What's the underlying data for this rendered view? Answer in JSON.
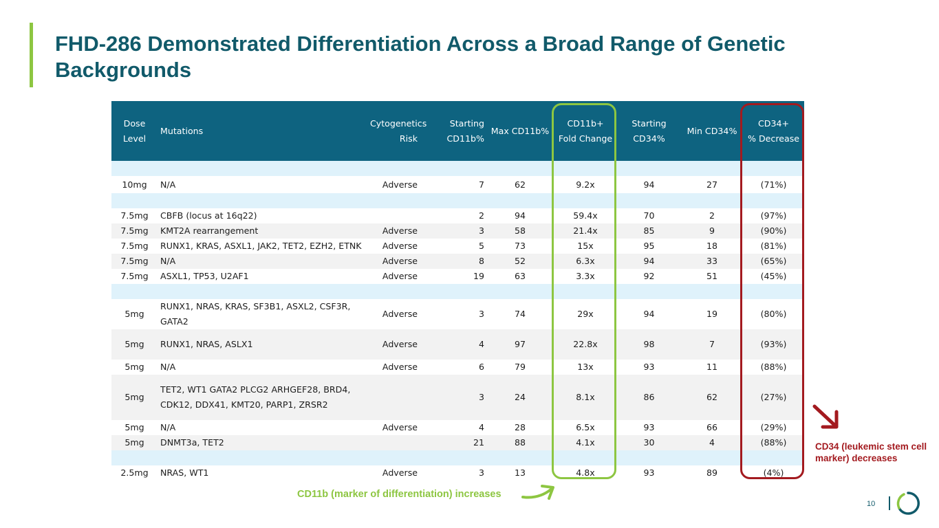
{
  "title": "FHD-286 Demonstrated Differentiation Across a Broad Range of Genetic Backgrounds",
  "table": {
    "headers": {
      "dose_line1": "Dose",
      "dose_line2": "Level",
      "mutations": "Mutations",
      "cyto_line1": "Cytogenetics",
      "cyto_line2": "Risk",
      "start_cd11b_line1": "Starting",
      "start_cd11b_line2": "CD11b%",
      "max_cd11b": "Max CD11b%",
      "fold_line1": "CD11b+",
      "fold_line2": "Fold Change",
      "start_cd34_line1": "Starting",
      "start_cd34_line2": "CD34%",
      "min_cd34": "Min CD34%",
      "decrease_line1": "CD34+",
      "decrease_line2": "% Decrease"
    },
    "rows": [
      {
        "dose": "10mg",
        "mutations": "N/A",
        "risk": "Adverse",
        "start_cd11b": "7",
        "max_cd11b": "62",
        "fold": "9.2x",
        "start_cd34": "94",
        "min_cd34": "27",
        "decrease": "(71%)"
      },
      {
        "dose": "7.5mg",
        "mutations": "CBFB (locus at 16q22)",
        "risk": "",
        "start_cd11b": "2",
        "max_cd11b": "94",
        "fold": "59.4x",
        "start_cd34": "70",
        "min_cd34": "2",
        "decrease": "(97%)"
      },
      {
        "dose": "7.5mg",
        "mutations": "KMT2A rearrangement",
        "risk": "Adverse",
        "start_cd11b": "3",
        "max_cd11b": "58",
        "fold": "21.4x",
        "start_cd34": "85",
        "min_cd34": "9",
        "decrease": "(90%)"
      },
      {
        "dose": "7.5mg",
        "mutations": "RUNX1, KRAS, ASXL1, JAK2, TET2, EZH2, ETNK",
        "risk": "Adverse",
        "start_cd11b": "5",
        "max_cd11b": "73",
        "fold": "15x",
        "start_cd34": "95",
        "min_cd34": "18",
        "decrease": "(81%)"
      },
      {
        "dose": "7.5mg",
        "mutations": "N/A",
        "risk": "Adverse",
        "start_cd11b": "8",
        "max_cd11b": "52",
        "fold": "6.3x",
        "start_cd34": "94",
        "min_cd34": "33",
        "decrease": "(65%)"
      },
      {
        "dose": "7.5mg",
        "mutations": "ASXL1, TP53, U2AF1",
        "risk": "Adverse",
        "start_cd11b": "19",
        "max_cd11b": "63",
        "fold": "3.3x",
        "start_cd34": "92",
        "min_cd34": "51",
        "decrease": "(45%)"
      },
      {
        "dose": "5mg",
        "mutations": "RUNX1, NRAS, KRAS, SF3B1, ASXL2, CSF3R, GATA2",
        "risk": "Adverse",
        "start_cd11b": "3",
        "max_cd11b": "74",
        "fold": "29x",
        "start_cd34": "94",
        "min_cd34": "19",
        "decrease": "(80%)"
      },
      {
        "dose": "5mg",
        "mutations": "RUNX1, NRAS, ASLX1",
        "risk": "Adverse",
        "start_cd11b": "4",
        "max_cd11b": "97",
        "fold": "22.8x",
        "start_cd34": "98",
        "min_cd34": "7",
        "decrease": "(93%)"
      },
      {
        "dose": "5mg",
        "mutations": "N/A",
        "risk": "Adverse",
        "start_cd11b": "6",
        "max_cd11b": "79",
        "fold": "13x",
        "start_cd34": "93",
        "min_cd34": "11",
        "decrease": "(88%)"
      },
      {
        "dose": "5mg",
        "mutations": "TET2, WT1 GATA2 PLCG2 ARHGEF28, BRD4, CDK12, DDX41, KMT20, PARP1, ZRSR2",
        "risk": "",
        "start_cd11b": "3",
        "max_cd11b": "24",
        "fold": "8.1x",
        "start_cd34": "86",
        "min_cd34": "62",
        "decrease": "(27%)"
      },
      {
        "dose": "5mg",
        "mutations": "N/A",
        "risk": "Adverse",
        "start_cd11b": "4",
        "max_cd11b": "28",
        "fold": "6.5x",
        "start_cd34": "93",
        "min_cd34": "66",
        "decrease": "(29%)"
      },
      {
        "dose": "5mg",
        "mutations": "DNMT3a, TET2",
        "risk": "",
        "start_cd11b": "21",
        "max_cd11b": "88",
        "fold": "4.1x",
        "start_cd34": "30",
        "min_cd34": "4",
        "decrease": "(88%)"
      },
      {
        "dose": "2.5mg",
        "mutations": "NRAS, WT1",
        "risk": "Adverse",
        "start_cd11b": "3",
        "max_cd11b": "13",
        "fold": "4.8x",
        "start_cd34": "93",
        "min_cd34": "89",
        "decrease": "(4%)"
      }
    ]
  },
  "annotations": {
    "cd11b_note": "CD11b (marker of differentiation) increases",
    "cd34_note": "CD34 (leukemic stem cell marker) decreases"
  },
  "footer": {
    "page_number": "10"
  },
  "colors": {
    "title": "#115a6a",
    "header_bg": "#0e6380",
    "green": "#8dc641",
    "red": "#a31a1f",
    "band": "#dff2fb"
  }
}
